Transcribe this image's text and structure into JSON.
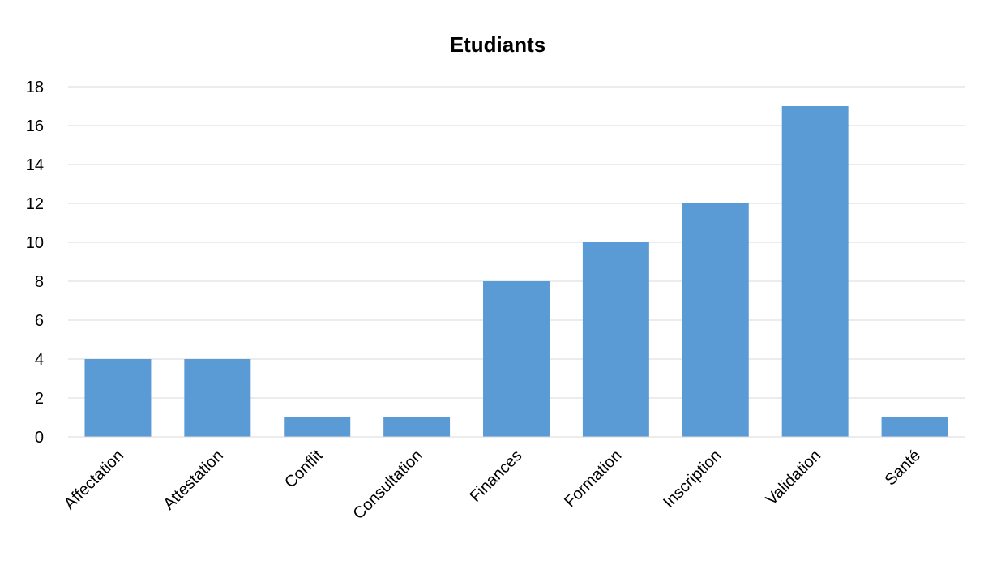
{
  "chart_data": {
    "type": "bar",
    "title": "Etudiants",
    "categories": [
      "Affectation",
      "Attestation",
      "Conflit",
      "Consultation",
      "Finances",
      "Formation",
      "Inscription",
      "Validation",
      "Santé"
    ],
    "values": [
      4,
      4,
      1,
      1,
      8,
      10,
      12,
      17,
      1
    ],
    "xlabel": "",
    "ylabel": "",
    "ylim": [
      0,
      18
    ],
    "yticks": [
      0,
      2,
      4,
      6,
      8,
      10,
      12,
      14,
      16,
      18
    ],
    "grid": true,
    "legend": "none",
    "bar_color": "#5b9bd5"
  }
}
